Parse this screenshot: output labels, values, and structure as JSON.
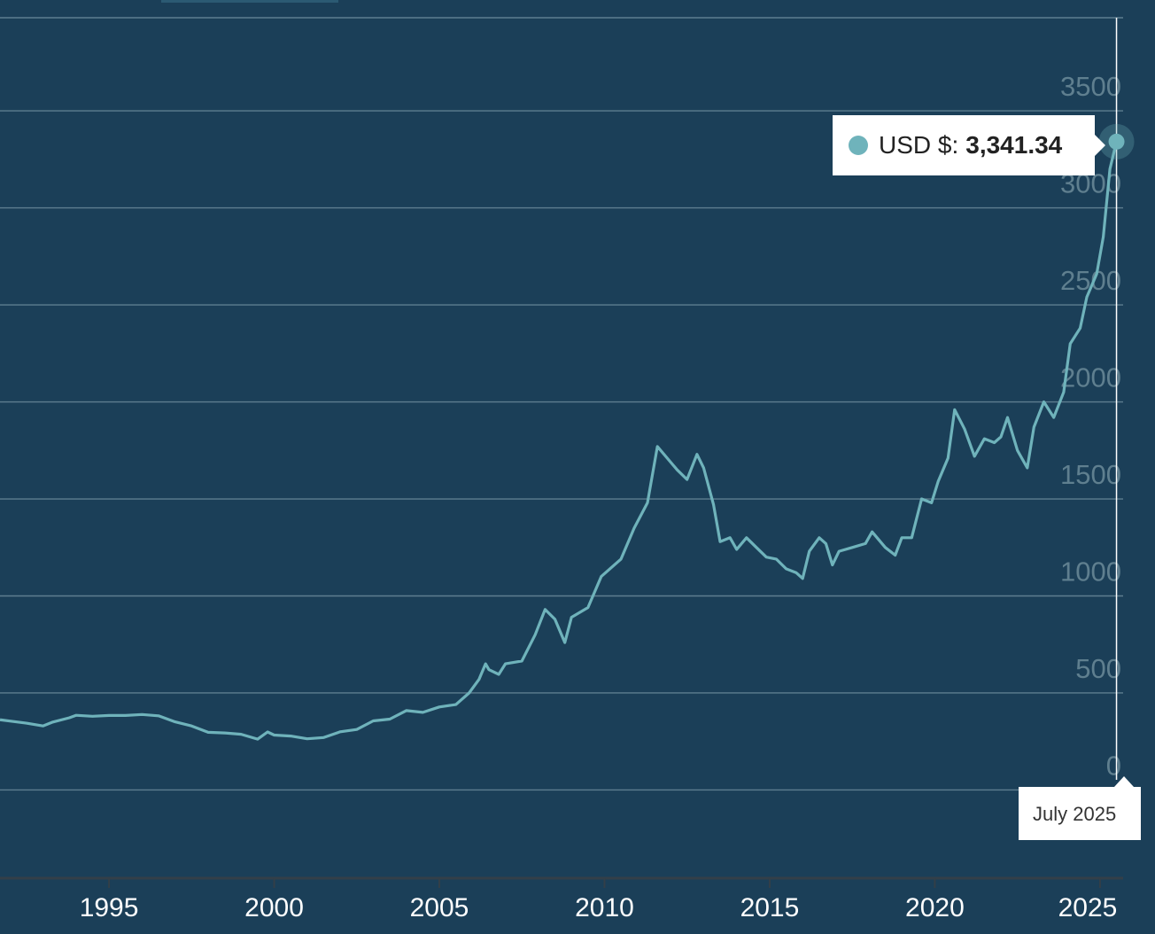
{
  "chart_data": {
    "type": "line",
    "title": "",
    "xlabel": "",
    "ylabel": "",
    "x_ticks": [
      "1995",
      "2000",
      "2005",
      "2010",
      "2015",
      "2020",
      "2025"
    ],
    "y_ticks": [
      "0",
      "500",
      "1000",
      "1500",
      "2000",
      "2500",
      "3000",
      "3500"
    ],
    "xlim": [
      1991.7,
      2025.7
    ],
    "ylim": [
      -450,
      3980
    ],
    "grid": true,
    "series": [
      {
        "name": "USD $",
        "color": "#6fb3bb",
        "points": [
          [
            1991.7,
            362
          ],
          [
            1992.0,
            355
          ],
          [
            1992.5,
            344
          ],
          [
            1993.0,
            330
          ],
          [
            1993.3,
            350
          ],
          [
            1993.8,
            372
          ],
          [
            1994.0,
            385
          ],
          [
            1994.5,
            380
          ],
          [
            1995.0,
            384
          ],
          [
            1995.5,
            384
          ],
          [
            1996.0,
            389
          ],
          [
            1996.5,
            382
          ],
          [
            1997.0,
            351
          ],
          [
            1997.5,
            330
          ],
          [
            1998.0,
            297
          ],
          [
            1998.5,
            294
          ],
          [
            1999.0,
            287
          ],
          [
            1999.5,
            262
          ],
          [
            1999.8,
            299
          ],
          [
            2000.0,
            283
          ],
          [
            2000.5,
            278
          ],
          [
            2001.0,
            264
          ],
          [
            2001.5,
            270
          ],
          [
            2002.0,
            300
          ],
          [
            2002.5,
            312
          ],
          [
            2003.0,
            356
          ],
          [
            2003.5,
            365
          ],
          [
            2004.0,
            409
          ],
          [
            2004.5,
            400
          ],
          [
            2005.0,
            428
          ],
          [
            2005.5,
            440
          ],
          [
            2005.9,
            500
          ],
          [
            2006.2,
            570
          ],
          [
            2006.4,
            650
          ],
          [
            2006.5,
            620
          ],
          [
            2006.8,
            596
          ],
          [
            2007.0,
            650
          ],
          [
            2007.5,
            665
          ],
          [
            2007.9,
            800
          ],
          [
            2008.2,
            930
          ],
          [
            2008.5,
            880
          ],
          [
            2008.8,
            760
          ],
          [
            2009.0,
            890
          ],
          [
            2009.5,
            940
          ],
          [
            2009.9,
            1100
          ],
          [
            2010.5,
            1190
          ],
          [
            2010.9,
            1350
          ],
          [
            2011.3,
            1480
          ],
          [
            2011.6,
            1770
          ],
          [
            2011.9,
            1710
          ],
          [
            2012.2,
            1650
          ],
          [
            2012.5,
            1600
          ],
          [
            2012.8,
            1730
          ],
          [
            2013.0,
            1660
          ],
          [
            2013.3,
            1470
          ],
          [
            2013.5,
            1280
          ],
          [
            2013.8,
            1300
          ],
          [
            2014.0,
            1240
          ],
          [
            2014.3,
            1300
          ],
          [
            2014.6,
            1250
          ],
          [
            2014.9,
            1200
          ],
          [
            2015.2,
            1190
          ],
          [
            2015.5,
            1140
          ],
          [
            2015.8,
            1120
          ],
          [
            2016.0,
            1090
          ],
          [
            2016.2,
            1230
          ],
          [
            2016.5,
            1300
          ],
          [
            2016.7,
            1270
          ],
          [
            2016.9,
            1160
          ],
          [
            2017.1,
            1230
          ],
          [
            2017.5,
            1250
          ],
          [
            2017.9,
            1270
          ],
          [
            2018.1,
            1330
          ],
          [
            2018.5,
            1250
          ],
          [
            2018.8,
            1210
          ],
          [
            2019.0,
            1300
          ],
          [
            2019.3,
            1300
          ],
          [
            2019.6,
            1500
          ],
          [
            2019.9,
            1480
          ],
          [
            2020.1,
            1590
          ],
          [
            2020.4,
            1710
          ],
          [
            2020.6,
            1960
          ],
          [
            2020.9,
            1860
          ],
          [
            2021.2,
            1720
          ],
          [
            2021.5,
            1810
          ],
          [
            2021.8,
            1790
          ],
          [
            2022.0,
            1820
          ],
          [
            2022.2,
            1920
          ],
          [
            2022.5,
            1750
          ],
          [
            2022.8,
            1660
          ],
          [
            2023.0,
            1870
          ],
          [
            2023.3,
            2000
          ],
          [
            2023.6,
            1920
          ],
          [
            2023.9,
            2050
          ],
          [
            2024.1,
            2300
          ],
          [
            2024.4,
            2380
          ],
          [
            2024.6,
            2540
          ],
          [
            2024.9,
            2660
          ],
          [
            2025.1,
            2850
          ],
          [
            2025.3,
            3200
          ],
          [
            2025.5,
            3341.34
          ]
        ]
      }
    ],
    "tooltip": {
      "series_label": "USD $:",
      "value_label": "3,341.34",
      "date_label": "July 2025",
      "x": 2025.5,
      "y": 3341.34
    }
  }
}
